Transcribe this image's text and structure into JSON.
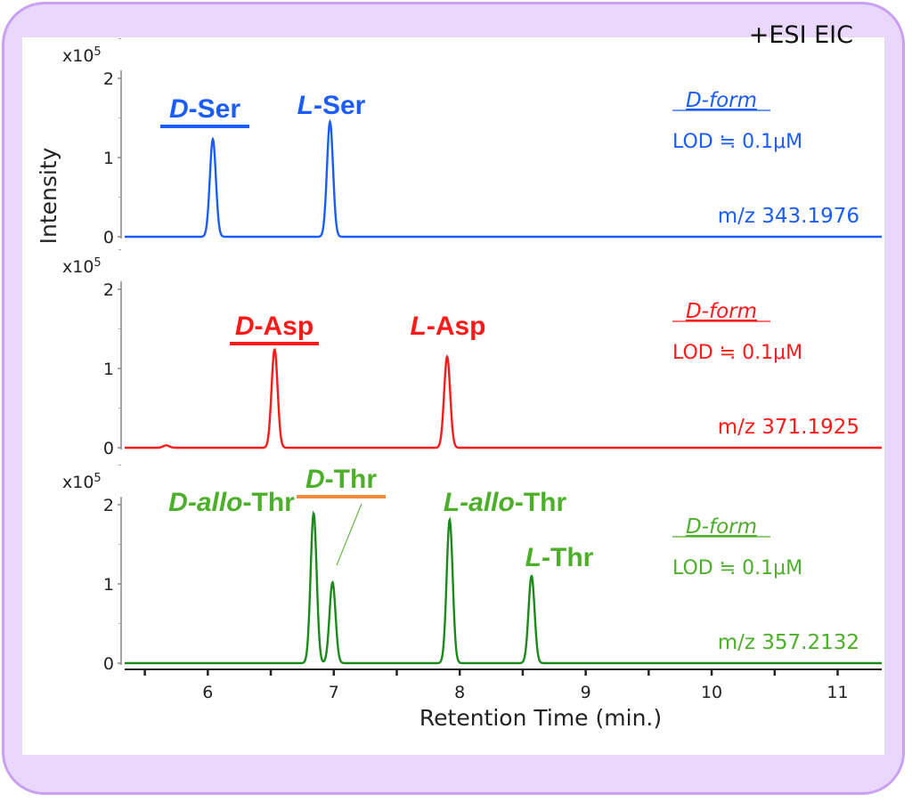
{
  "header": {
    "mode_label": "+ESI EIC"
  },
  "colors": {
    "ser": "#1a5cff",
    "asp": "#ff1a1a",
    "thr": "#1a8a1a",
    "thr_text": "#4caf2a",
    "dthr_bar": "#f08a3c",
    "frame": "#c9a0f3",
    "background": "#e9d7fc"
  },
  "chart_data": {
    "type": "line",
    "xlabel": "Retention Time (min.)",
    "ylabel": "Intensity",
    "xlim": [
      5.34,
      11.35
    ],
    "xticks": [
      "6",
      "7",
      "8",
      "9",
      "10",
      "11"
    ],
    "y_multiplier": "x10",
    "y_multiplier_exp": "5",
    "yticks": [
      "0",
      "1",
      "2"
    ],
    "ylim": [
      0,
      2
    ],
    "panels": [
      {
        "name": "Ser",
        "mz": "m/z 343.1976",
        "form_label": "D-form",
        "lod": "LOD ≒ 0.1μM",
        "peaks": [
          {
            "prefix": "D",
            "mid": "",
            "suffix": "-Ser",
            "rt": 6.04,
            "height": 1.23,
            "highlight": true
          },
          {
            "prefix": "L",
            "mid": "",
            "suffix": "-Ser",
            "rt": 6.97,
            "height": 1.45,
            "highlight": false
          }
        ],
        "minor_peaks": []
      },
      {
        "name": "Asp",
        "mz": "m/z 371.1925",
        "form_label": "D-form",
        "lod": "LOD ≒ 0.1μM",
        "peaks": [
          {
            "prefix": "D",
            "mid": "",
            "suffix": "-Asp",
            "rt": 6.53,
            "height": 1.24,
            "highlight": true
          },
          {
            "prefix": "L",
            "mid": "",
            "suffix": "-Asp",
            "rt": 7.9,
            "height": 1.15,
            "highlight": false
          }
        ],
        "minor_peaks": [
          {
            "rt": 5.67,
            "height": 0.03
          }
        ]
      },
      {
        "name": "Thr",
        "mz": "m/z 357.2132",
        "form_label": "D-form",
        "lod": "LOD ≒ 0.1μM",
        "peaks": [
          {
            "prefix": "D",
            "mid": "-allo",
            "suffix": "-Thr",
            "rt": 6.84,
            "height": 1.89,
            "highlight": false
          },
          {
            "prefix": "D",
            "mid": "",
            "suffix": "-Thr",
            "rt": 6.99,
            "height": 1.02,
            "highlight": true
          },
          {
            "prefix": "L",
            "mid": "-allo",
            "suffix": "-Thr",
            "rt": 7.92,
            "height": 1.81,
            "highlight": false
          },
          {
            "prefix": "L",
            "mid": "",
            "suffix": "-Thr",
            "rt": 8.57,
            "height": 1.1,
            "highlight": false
          }
        ],
        "minor_peaks": []
      }
    ]
  }
}
